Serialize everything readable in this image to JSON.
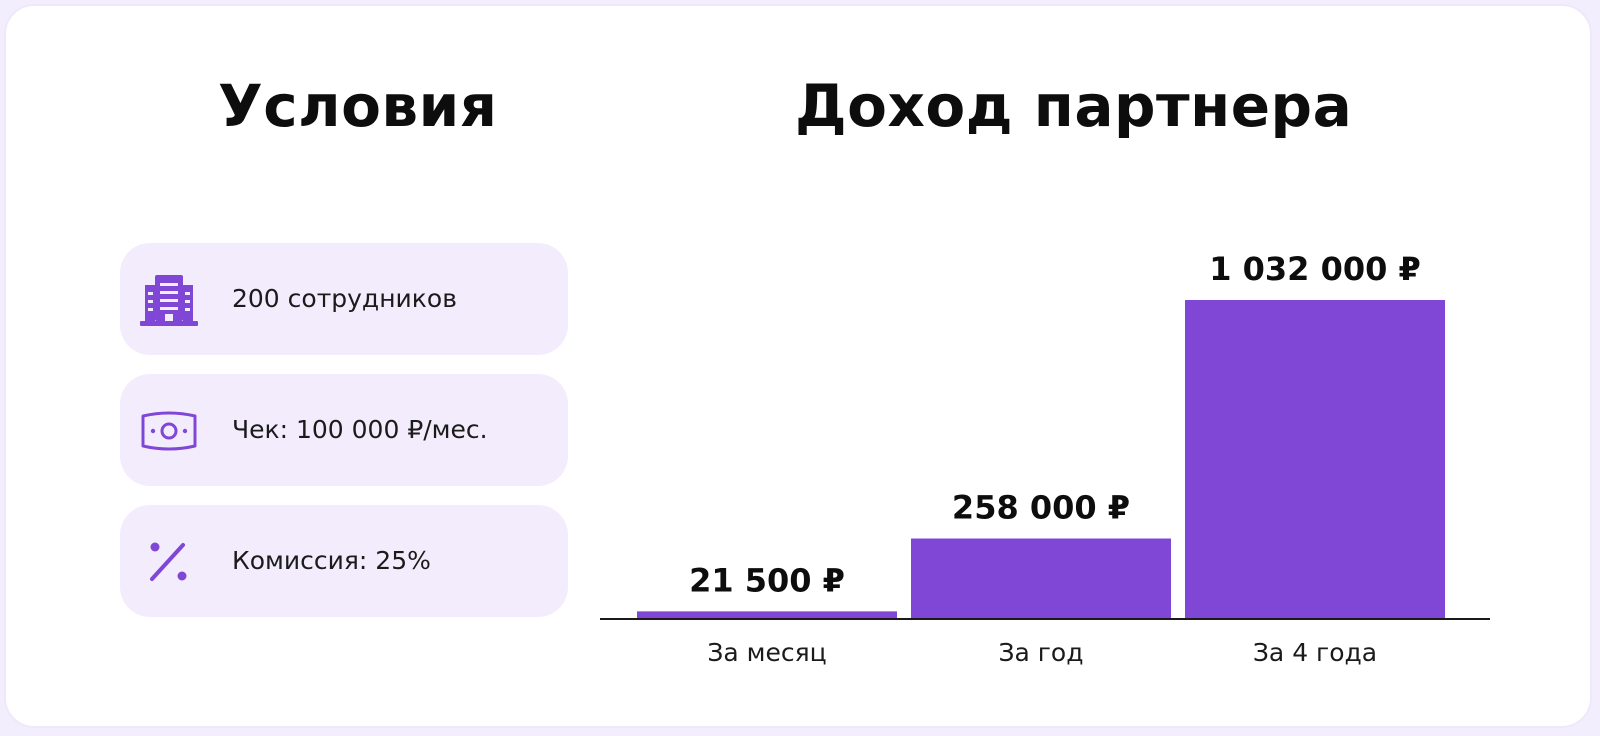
{
  "conditions": {
    "title": "Условия",
    "items": [
      {
        "icon": "building-icon",
        "label": "200 сотрудников"
      },
      {
        "icon": "banknote-icon",
        "label": "Чек: 100 000 ₽/мес."
      },
      {
        "icon": "percent-icon",
        "label": "Комиссия: 25%"
      }
    ]
  },
  "chart_data": {
    "type": "bar",
    "title": "Доход партнера",
    "categories": [
      "За месяц",
      "За год",
      "За 4 года"
    ],
    "values": [
      21500,
      258000,
      1032000
    ],
    "value_labels": [
      "21 500 ₽",
      "258 000 ₽",
      "1 032 000 ₽"
    ],
    "xlabel": "",
    "ylabel": "",
    "grid": false,
    "legend": "none",
    "bar_color": "#8047d6"
  },
  "colors": {
    "accent": "#8047d6",
    "card_bg": "#f3ecfd",
    "border": "#efe8fb"
  }
}
